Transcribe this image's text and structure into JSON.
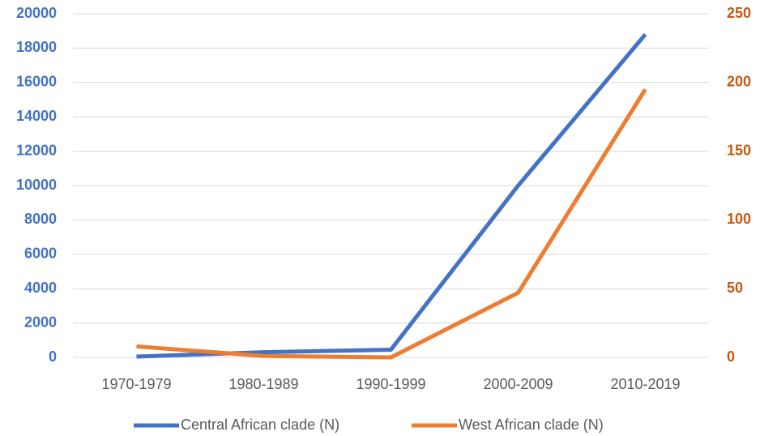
{
  "chart_data": {
    "type": "line",
    "categories": [
      "1970-1979",
      "1980-1989",
      "1990-1999",
      "2000-2009",
      "2010-2019"
    ],
    "series": [
      {
        "name": "Central African clade (N)",
        "color": "#4472c4",
        "values": [
          50,
          300,
          450,
          10000,
          18800
        ]
      },
      {
        "name": "West African clade (N)",
        "color": "#ed7d31",
        "axis": "y2",
        "values": [
          8,
          1,
          0,
          47,
          195
        ]
      }
    ],
    "ylim": [
      0,
      20000
    ],
    "yticks": [
      0,
      2000,
      4000,
      6000,
      8000,
      10000,
      12000,
      14000,
      16000,
      18000,
      20000
    ],
    "y2lim": [
      0,
      250
    ],
    "y2ticks": [
      0,
      50,
      100,
      150,
      200,
      250
    ],
    "ytick_color": "#4472c4",
    "y2tick_color": "#c55a11",
    "grid": true,
    "legend": "bottom"
  }
}
